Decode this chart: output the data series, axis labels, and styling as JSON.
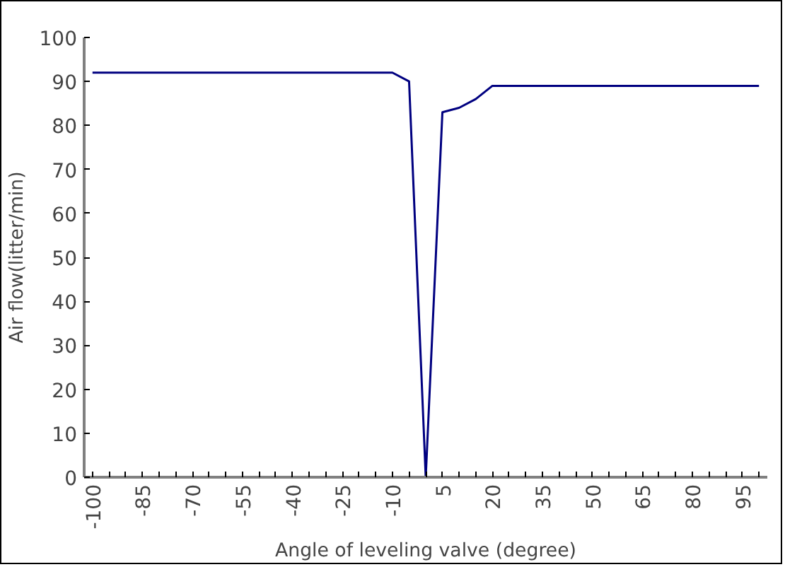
{
  "chart_data": {
    "type": "line",
    "xlabel": "Angle of leveling valve (degree)",
    "ylabel": "Air flow(litter/min)",
    "categories": [
      "-100",
      null,
      null,
      "-85",
      null,
      null,
      "-70",
      null,
      null,
      "-55",
      null,
      null,
      "-40",
      null,
      null,
      "-25",
      null,
      null,
      "-10",
      null,
      null,
      "5",
      null,
      null,
      "20",
      null,
      null,
      "35",
      null,
      null,
      "50",
      null,
      null,
      "65",
      null,
      null,
      "80",
      null,
      null,
      "95",
      null
    ],
    "series": [
      {
        "color": "#000080",
        "values": [
          92,
          92,
          92,
          92,
          92,
          92,
          92,
          92,
          92,
          92,
          92,
          92,
          92,
          92,
          92,
          92,
          92,
          92,
          92,
          90,
          0,
          83,
          84,
          86,
          89,
          89,
          89,
          89,
          89,
          89,
          89,
          89,
          89,
          89,
          89,
          89,
          89,
          89,
          89,
          89,
          89
        ]
      }
    ],
    "ylim": [
      0,
      100
    ],
    "yticks": [
      0,
      10,
      20,
      30,
      40,
      50,
      60,
      70,
      80,
      90,
      100
    ],
    "grid": false,
    "marker": "none",
    "line_style": "solid"
  }
}
